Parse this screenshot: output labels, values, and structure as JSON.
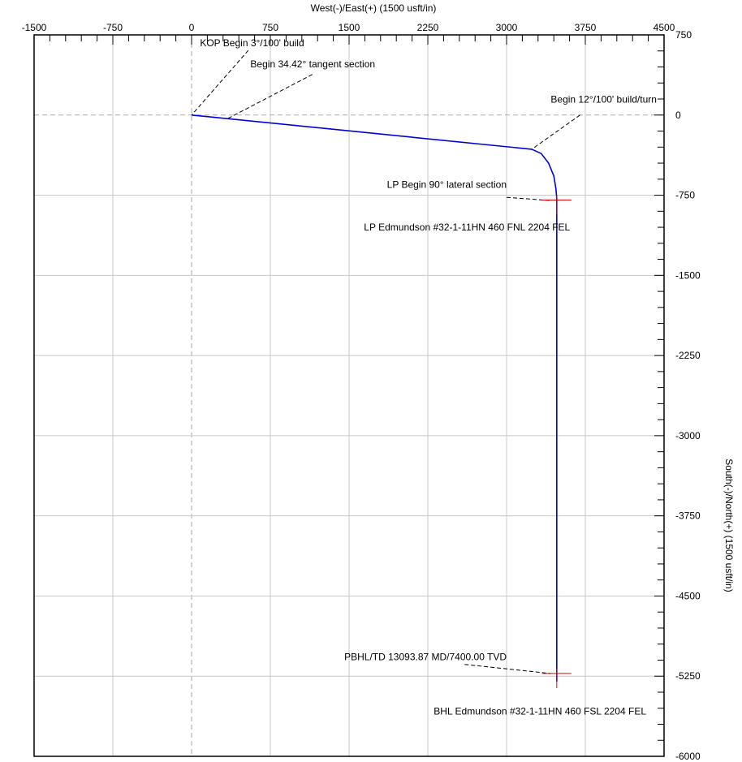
{
  "chart_data": {
    "type": "line",
    "title": "",
    "xlabel": "West(-)/East(+) (1500 usft/in)",
    "ylabel": "South(-)/North(+) (1500 usft/in)",
    "xlim": [
      -1500,
      4500
    ],
    "ylim": [
      -6000,
      750
    ],
    "x_ticks": [
      -1500,
      -750,
      0,
      750,
      1500,
      2250,
      3000,
      3750,
      4500
    ],
    "x_tick_labels": [
      "-1500",
      "-750",
      "0",
      "750",
      "1500",
      "2250",
      "3000",
      "3750",
      "4500"
    ],
    "y_ticks": [
      750,
      0,
      -750,
      -1500,
      -2250,
      -3000,
      -3750,
      -4500,
      -5250,
      -6000
    ],
    "y_tick_labels": [
      "750",
      "0",
      "-750",
      "-1500",
      "-2250",
      "-3000",
      "-3750",
      "-4500",
      "-5250",
      "-6000"
    ],
    "grid": true,
    "colors": {
      "path": "#0000dd",
      "target": "#dd0000",
      "grid": "#c8c8c8",
      "zero": "#aaaaaa"
    },
    "series": [
      {
        "x": [
          0,
          3240,
          3330,
          3400,
          3450,
          3470,
          3478,
          3478,
          3478
        ],
        "y": [
          0,
          -320,
          -360,
          -450,
          -570,
          -690,
          -780,
          -5200,
          -5300
        ]
      }
    ],
    "targets": [
      {
        "x": 3478,
        "y": -795
      },
      {
        "x": 3478,
        "y": -5225
      }
    ],
    "annotations": [
      {
        "text": "KOP Begin 3°/100' build",
        "pos": [
          80,
          645
        ],
        "anchor": "start",
        "target": [
          0,
          0
        ],
        "from": [
          540,
          605
        ]
      },
      {
        "text": "Begin 34.42° tangent section",
        "pos": [
          560,
          445
        ],
        "anchor": "start",
        "target": [
          350,
          -30
        ],
        "from": [
          1150,
          380
        ]
      },
      {
        "text": "Begin 12°/100' build/turn",
        "pos": [
          4430,
          115
        ],
        "anchor": "end",
        "target": [
          3240,
          -320
        ],
        "from": [
          3700,
          0
        ]
      },
      {
        "text": "LP Begin 90° lateral section",
        "pos": [
          3000,
          -680
        ],
        "anchor": "end",
        "target": [
          3420,
          -800
        ],
        "from": [
          3000,
          -770
        ]
      },
      {
        "text": "LP Edmundson #32-1-11HN 460 FNL 2204 FEL",
        "pos": [
          3605,
          -1080
        ],
        "anchor": "end"
      },
      {
        "text": "PBHL/TD 13093.87 MD/7400.00 TVD",
        "pos": [
          3000,
          -5100
        ],
        "anchor": "end",
        "target": [
          3420,
          -5225
        ],
        "from": [
          2600,
          -5140
        ]
      },
      {
        "text": "BHL Edmundson #32-1-11HN 460 FSL 2204 FEL",
        "pos": [
          4330,
          -5610
        ],
        "anchor": "end"
      }
    ]
  }
}
